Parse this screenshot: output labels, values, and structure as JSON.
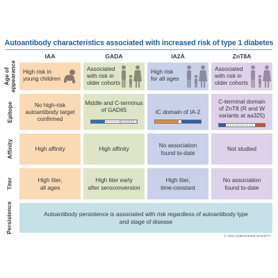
{
  "title": "Autoantibody characteristics associated with increased risk of type 1 diabetes",
  "columns": [
    "IAA",
    "GADA",
    "IA2A",
    "ZnT8A"
  ],
  "rows": {
    "age": "Age of\nappearance",
    "epitope": "Epitope",
    "affinity": "Affinity",
    "titer": "Titer",
    "persistence": "Persistence"
  },
  "cells": {
    "age_iaa": "High risk in\nyoung children",
    "age_gada": "Associated\nwith risk in\nolder cohorts",
    "age_ia2a": "High risk\nfor all ages",
    "age_znt": "Associated\nwith risk in\nolder cohorts",
    "epi_iaa": "No high-risk\nautoantibody target\nconfirmed",
    "epi_gada": "Middle and C-terminus\nof GAD65",
    "epi_ia2a": "IC domain of IA-2",
    "epi_znt": "C-terminal domain\nof ZnT8 (R and W\nvariants at aa325)",
    "aff_iaa": "High affinity",
    "aff_gada": "High affinity",
    "aff_ia2a": "No association\nfound to-date",
    "aff_znt": "Not studied",
    "tit_iaa": "High titer,\nall ages",
    "tit_gada": "High titer early\nafter seroconversion",
    "tit_ia2a": "High titer,\ntime-constant",
    "tit_znt": "No association\nfound to-date",
    "persistence": "Autoantibody persistence is associated with risk regardless of autoantibody type\nand stage of disease"
  },
  "copyright": "© 2021 ENDOCRINE SOCIETY",
  "colors": {
    "title": "#1d5c9b",
    "iaa": "#fbd9b4",
    "gada": "#dde5c6",
    "ia2a": "#c9d1ea",
    "znt8a": "#ddd2ea",
    "persistence": "#c5e1e7"
  }
}
